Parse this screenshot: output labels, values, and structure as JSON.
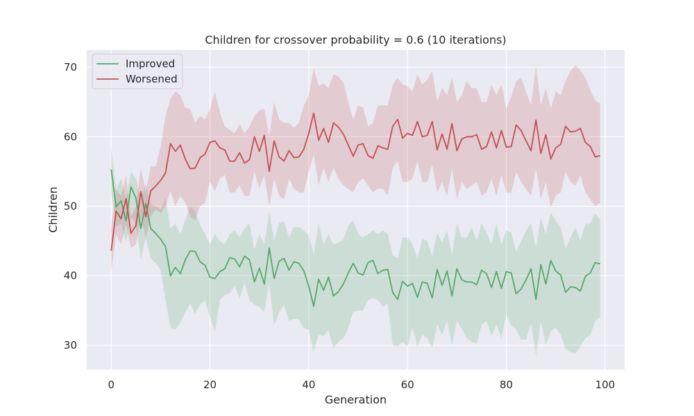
{
  "chart_data": {
    "type": "line",
    "title": "Children for crossover probability = 0.6 (10 iterations)",
    "xlabel": "Generation",
    "ylabel": "Children",
    "xlim": [
      -4.95,
      103.95
    ],
    "ylim": [
      26.5,
      72.5
    ],
    "xticks": [
      0,
      20,
      40,
      60,
      80,
      100
    ],
    "yticks": [
      30,
      40,
      50,
      60,
      70
    ],
    "grid": true,
    "legend_position": "top-left",
    "series": [
      {
        "name": "Improved",
        "color": "#55a868",
        "x": [
          0,
          1,
          2,
          3,
          4,
          5,
          6,
          7,
          8,
          9,
          10,
          11,
          12,
          13,
          14,
          15,
          16,
          17,
          18,
          19,
          20,
          21,
          22,
          23,
          24,
          25,
          26,
          27,
          28,
          29,
          30,
          31,
          32,
          33,
          34,
          35,
          36,
          37,
          38,
          39,
          40,
          41,
          42,
          43,
          44,
          45,
          46,
          47,
          48,
          49,
          50,
          51,
          52,
          53,
          54,
          55,
          56,
          57,
          58,
          59,
          60,
          61,
          62,
          63,
          64,
          65,
          66,
          67,
          68,
          69,
          70,
          71,
          72,
          73,
          74,
          75,
          76,
          77,
          78,
          79,
          80,
          81,
          82,
          83,
          84,
          85,
          86,
          87,
          88,
          89,
          90,
          91,
          92,
          93,
          94,
          95,
          96,
          97,
          98,
          99
        ],
        "y": [
          55.3,
          49.9,
          50.8,
          47.9,
          52.8,
          51.2,
          46.8,
          50.4,
          46.8,
          46.1,
          45.3,
          44.2,
          40.0,
          41.2,
          40.3,
          42.3,
          43.6,
          43.5,
          42.0,
          41.5,
          39.8,
          39.6,
          40.6,
          41.0,
          42.6,
          42.4,
          41.3,
          42.8,
          42.3,
          39.1,
          41.1,
          38.8,
          44.0,
          39.6,
          42.1,
          42.5,
          40.8,
          42.0,
          41.8,
          40.7,
          38.5,
          35.6,
          39.5,
          37.9,
          39.8,
          37.1,
          37.7,
          38.8,
          40.4,
          41.8,
          40.4,
          40.1,
          41.9,
          42.2,
          40.3,
          40.8,
          40.9,
          37.6,
          36.6,
          39.2,
          38.5,
          38.9,
          36.9,
          39.1,
          38.9,
          36.8,
          40.9,
          38.6,
          40.7,
          37.1,
          41.0,
          39.4,
          39.1,
          39.1,
          38.7,
          40.8,
          40.3,
          38.3,
          40.6,
          38.2,
          40.6,
          40.4,
          37.4,
          38.1,
          39.4,
          41.0,
          36.6,
          41.6,
          38.8,
          42.2,
          40.7,
          40.1,
          37.6,
          38.4,
          38.3,
          37.8,
          39.9,
          40.4,
          41.9,
          41.7
        ],
        "band_low": [
          52.0,
          47.0,
          47.5,
          44.8,
          48.5,
          47.5,
          42.3,
          45.5,
          42.5,
          41.8,
          40.8,
          36.5,
          32.5,
          32.3,
          33.2,
          34.8,
          36.0,
          34.5,
          35.8,
          36.5,
          34.0,
          32.0,
          36.5,
          37.2,
          37.5,
          38.5,
          36.8,
          39.0,
          36.5,
          35.8,
          35.5,
          34.8,
          39.0,
          32.8,
          34.8,
          35.8,
          33.5,
          33.8,
          33.7,
          32.5,
          32.2,
          29.0,
          31.5,
          31.3,
          32.2,
          29.5,
          30.5,
          31.0,
          32.5,
          34.8,
          35.0,
          35.0,
          36.5,
          36.8,
          36.5,
          35.5,
          36.0,
          30.0,
          29.8,
          30.5,
          29.8,
          32.5,
          29.8,
          31.5,
          31.0,
          29.6,
          33.0,
          31.5,
          33.5,
          30.0,
          33.5,
          32.3,
          31.0,
          30.5,
          30.2,
          33.0,
          33.5,
          31.3,
          33.0,
          31.0,
          34.5,
          32.8,
          32.3,
          30.8,
          30.8,
          33.2,
          28.5,
          33.5,
          30.0,
          32.0,
          32.5,
          31.5,
          29.5,
          29.0,
          28.8,
          29.8,
          31.0,
          31.5,
          33.5,
          34.0
        ],
        "band_high": [
          58.5,
          52.5,
          54.0,
          51.0,
          55.0,
          54.0,
          51.0,
          53.3,
          50.2,
          50.0,
          49.5,
          51.2,
          46.8,
          47.5,
          46.0,
          48.0,
          50.0,
          49.3,
          47.3,
          46.0,
          44.5,
          46.0,
          45.0,
          44.5,
          46.0,
          46.5,
          45.5,
          46.8,
          47.5,
          43.8,
          46.0,
          44.5,
          49.3,
          45.0,
          47.6,
          47.8,
          45.5,
          47.0,
          47.0,
          46.5,
          45.8,
          43.0,
          47.5,
          44.5,
          46.0,
          44.5,
          44.8,
          45.2,
          47.2,
          48.0,
          46.0,
          45.5,
          46.0,
          46.5,
          46.0,
          46.5,
          46.0,
          43.0,
          42.5,
          45.5,
          45.5,
          44.5,
          42.5,
          45.3,
          45.0,
          42.8,
          46.2,
          44.8,
          46.5,
          43.0,
          47.5,
          45.5,
          45.5,
          47.0,
          45.0,
          47.5,
          46.2,
          44.5,
          47.5,
          44.5,
          46.5,
          46.2,
          43.5,
          45.0,
          46.5,
          47.5,
          44.0,
          48.5,
          46.0,
          49.0,
          48.0,
          47.0,
          44.0,
          45.5,
          47.0,
          45.0,
          47.5,
          47.5,
          49.0,
          48.0
        ]
      },
      {
        "name": "Worsened",
        "color": "#c44e52",
        "x": [
          0,
          1,
          2,
          3,
          4,
          5,
          6,
          7,
          8,
          9,
          10,
          11,
          12,
          13,
          14,
          15,
          16,
          17,
          18,
          19,
          20,
          21,
          22,
          23,
          24,
          25,
          26,
          27,
          28,
          29,
          30,
          31,
          32,
          33,
          34,
          35,
          36,
          37,
          38,
          39,
          40,
          41,
          42,
          43,
          44,
          45,
          46,
          47,
          48,
          49,
          50,
          51,
          52,
          53,
          54,
          55,
          56,
          57,
          58,
          59,
          60,
          61,
          62,
          63,
          64,
          65,
          66,
          67,
          68,
          69,
          70,
          71,
          72,
          73,
          74,
          75,
          76,
          77,
          78,
          79,
          80,
          81,
          82,
          83,
          84,
          85,
          86,
          87,
          88,
          89,
          90,
          91,
          92,
          93,
          94,
          95,
          96,
          97,
          98,
          99
        ],
        "y": [
          43.6,
          49.3,
          48.2,
          51.1,
          46.1,
          47.2,
          52.1,
          48.5,
          52.2,
          52.9,
          53.7,
          54.8,
          59.0,
          57.9,
          58.8,
          56.8,
          55.4,
          55.5,
          57.0,
          57.5,
          59.2,
          59.4,
          58.4,
          58.1,
          56.5,
          56.5,
          57.7,
          56.2,
          56.7,
          60.0,
          57.9,
          60.2,
          55.0,
          59.4,
          57.1,
          56.5,
          58.0,
          57.0,
          57.1,
          58.2,
          60.5,
          63.4,
          59.5,
          61.2,
          59.2,
          62.0,
          61.4,
          60.4,
          58.8,
          57.2,
          58.8,
          59.0,
          57.3,
          56.9,
          58.7,
          58.4,
          58.2,
          61.5,
          62.5,
          59.8,
          60.5,
          60.2,
          62.2,
          60.0,
          60.2,
          62.2,
          58.1,
          60.4,
          58.2,
          61.9,
          58.0,
          59.7,
          60.0,
          60.0,
          60.3,
          58.2,
          58.6,
          60.7,
          58.4,
          60.9,
          58.5,
          58.6,
          61.7,
          60.9,
          59.4,
          58.0,
          62.4,
          57.6,
          60.3,
          56.8,
          58.4,
          58.9,
          61.5,
          60.7,
          60.8,
          61.2,
          59.2,
          58.6,
          57.1,
          57.3
        ],
        "band_low": [
          40.5,
          46.0,
          44.5,
          47.5,
          44.0,
          44.5,
          48.5,
          45.5,
          48.5,
          49.5,
          49.0,
          50.0,
          52.2,
          50.0,
          51.5,
          50.5,
          48.5,
          48.0,
          50.0,
          50.5,
          53.5,
          52.2,
          54.0,
          54.5,
          52.0,
          52.0,
          53.0,
          51.5,
          51.5,
          55.0,
          52.5,
          54.5,
          50.0,
          54.0,
          51.5,
          51.0,
          54.0,
          52.5,
          52.0,
          52.0,
          55.0,
          57.5,
          53.0,
          55.5,
          53.5,
          55.5,
          54.0,
          53.0,
          52.5,
          52.0,
          53.5,
          54.0,
          53.0,
          52.0,
          52.5,
          52.5,
          51.5,
          55.5,
          56.5,
          53.5,
          53.5,
          54.0,
          56.5,
          53.5,
          53.5,
          56.0,
          52.0,
          53.5,
          51.5,
          55.5,
          51.0,
          53.5,
          52.5,
          53.0,
          53.5,
          51.5,
          52.0,
          54.0,
          51.5,
          54.5,
          52.0,
          52.0,
          55.0,
          53.5,
          52.5,
          51.5,
          55.5,
          51.0,
          53.5,
          49.8,
          51.5,
          52.0,
          55.0,
          53.5,
          53.0,
          54.5,
          52.0,
          51.0,
          50.0,
          50.5
        ],
        "band_high": [
          47.0,
          52.5,
          51.5,
          54.5,
          48.5,
          50.0,
          55.5,
          52.0,
          55.8,
          55.7,
          58.5,
          63.0,
          65.5,
          66.5,
          66.0,
          64.2,
          64.0,
          62.0,
          63.0,
          62.5,
          64.0,
          66.5,
          63.5,
          61.5,
          61.0,
          60.5,
          61.8,
          60.5,
          61.5,
          63.0,
          63.8,
          64.0,
          60.0,
          65.0,
          62.5,
          62.0,
          62.0,
          61.3,
          62.0,
          64.5,
          66.0,
          69.8,
          67.3,
          67.7,
          67.0,
          69.0,
          68.7,
          67.8,
          65.0,
          62.5,
          64.5,
          64.2,
          61.5,
          62.0,
          64.5,
          64.5,
          64.5,
          67.5,
          68.5,
          67.5,
          67.3,
          66.5,
          69.0,
          67.5,
          68.2,
          69.5,
          65.0,
          67.0,
          66.0,
          68.5,
          65.0,
          66.0,
          68.0,
          67.0,
          67.0,
          65.0,
          65.0,
          67.5,
          66.0,
          67.5,
          64.0,
          65.8,
          68.0,
          68.5,
          66.5,
          64.5,
          70.3,
          64.5,
          67.0,
          64.0,
          66.5,
          66.0,
          68.0,
          69.5,
          70.3,
          69.5,
          68.5,
          66.7,
          65.2,
          64.8
        ]
      }
    ]
  }
}
